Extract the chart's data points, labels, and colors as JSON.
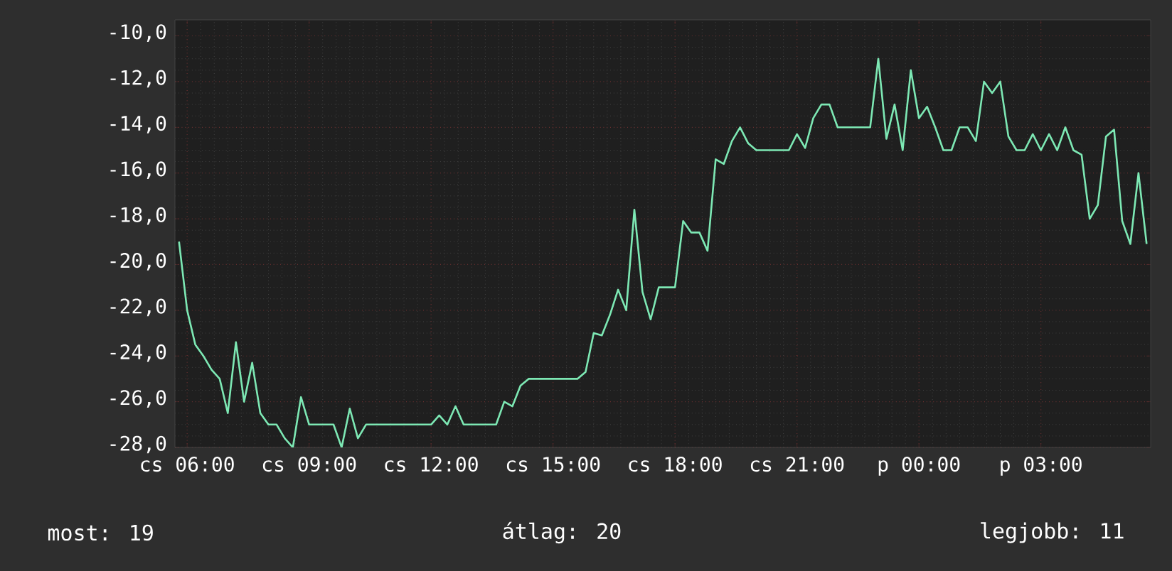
{
  "chart_data": {
    "type": "line",
    "categories": [
      null,
      "cs 06:00",
      null,
      null,
      null,
      null,
      null,
      null,
      null,
      null,
      null,
      null,
      null,
      null,
      null,
      null,
      "cs 09:00",
      null,
      null,
      null,
      null,
      null,
      null,
      null,
      null,
      null,
      null,
      null,
      null,
      null,
      null,
      "cs 12:00",
      null,
      null,
      null,
      null,
      null,
      null,
      null,
      null,
      null,
      null,
      null,
      null,
      null,
      null,
      "cs 15:00",
      null,
      null,
      null,
      null,
      null,
      null,
      null,
      null,
      null,
      null,
      null,
      null,
      null,
      null,
      "cs 18:00",
      null,
      null,
      null,
      null,
      null,
      null,
      null,
      null,
      null,
      null,
      null,
      null,
      null,
      null,
      "cs 21:00",
      null,
      null,
      null,
      null,
      null,
      null,
      null,
      null,
      null,
      null,
      null,
      null,
      null,
      null,
      "p 00:00",
      null,
      null,
      null,
      null,
      null,
      null,
      null,
      null,
      null,
      null,
      null,
      null,
      null,
      null,
      "p 03:00",
      null,
      null,
      null,
      null,
      null,
      null,
      null,
      null,
      null,
      null,
      null,
      null,
      null
    ],
    "values": [
      -19,
      -22,
      -23.5,
      -24,
      -24.6,
      -25,
      -26.5,
      -23.4,
      -26,
      -24.3,
      -26.5,
      -27,
      -27,
      -27.6,
      -28,
      -25.8,
      -27,
      -27,
      -27,
      -27,
      -28,
      -26.3,
      -27.6,
      -27,
      -27,
      -27,
      -27,
      -27,
      -27,
      -27,
      -27,
      -27,
      -26.6,
      -27,
      -26.2,
      -27,
      -27,
      -27,
      -27,
      -27,
      -26,
      -26.2,
      -25.3,
      -25,
      -25,
      -25,
      -25,
      -25,
      -25,
      -25,
      -24.7,
      -23,
      -23.1,
      -22.2,
      -21.1,
      -22,
      -17.6,
      -21.2,
      -22.4,
      -21,
      -21,
      -21,
      -18.1,
      -18.6,
      -18.6,
      -19.4,
      -15.4,
      -15.6,
      -14.6,
      -14,
      -14.7,
      -15,
      -15,
      -15,
      -15,
      -15,
      -14.3,
      -14.9,
      -13.6,
      -13,
      -13,
      -14,
      -14,
      -14,
      -14,
      -14,
      -11,
      -14.5,
      -13,
      -15,
      -11.5,
      -13.6,
      -13.1,
      -14,
      -15,
      -15,
      -14,
      -14,
      -14.6,
      -12,
      -12.5,
      -12,
      -14.4,
      -15,
      -15,
      -14.3,
      -15,
      -14.3,
      -15,
      -14,
      -15,
      -15.2,
      -18,
      -17.4,
      -14.4,
      -14.1,
      -18.1,
      -19.1,
      -16,
      -19.1
    ],
    "color": "#7de8b4",
    "ylim": [
      -28,
      -9.3
    ],
    "yticks": [
      {
        "value": -28,
        "label": "-28,0"
      },
      {
        "value": -26,
        "label": "-26,0"
      },
      {
        "value": -24,
        "label": "-24,0"
      },
      {
        "value": -22,
        "label": "-22,0"
      },
      {
        "value": -20,
        "label": "-20,0"
      },
      {
        "value": -18,
        "label": "-18,0"
      },
      {
        "value": -16,
        "label": "-16,0"
      },
      {
        "value": -14,
        "label": "-14,0"
      },
      {
        "value": -12,
        "label": "-12,0"
      },
      {
        "value": -10,
        "label": "-10,0"
      }
    ],
    "grid": true,
    "annotations": [
      "most: 19",
      "átlag: 20",
      "legjobb: 11"
    ]
  }
}
